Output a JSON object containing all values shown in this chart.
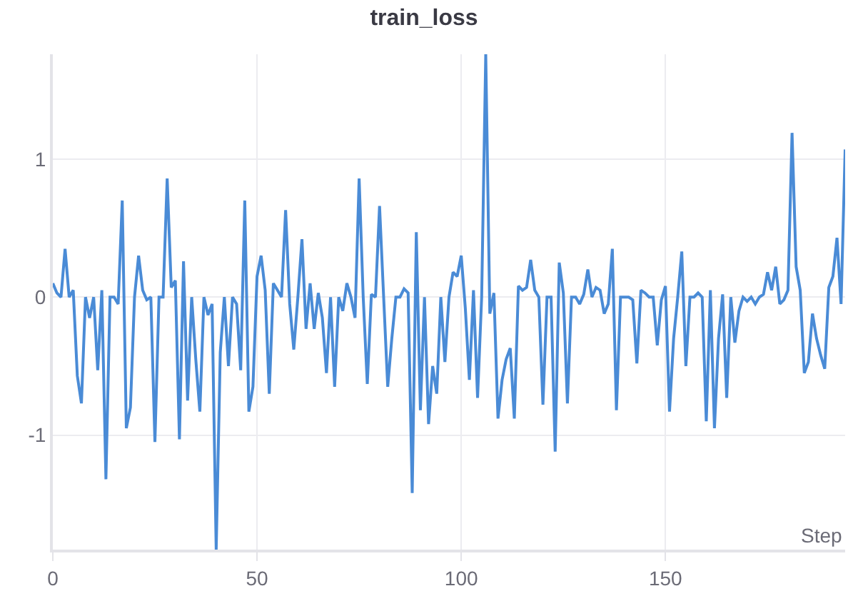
{
  "chart_data": {
    "type": "line",
    "title": "train_loss",
    "xlabel": "Step",
    "x": [
      0,
      1,
      2,
      3,
      4,
      5,
      6,
      7,
      8,
      9,
      10,
      11,
      12,
      13,
      14,
      15,
      16,
      17,
      18,
      19,
      20,
      21,
      22,
      23,
      24,
      25,
      26,
      27,
      28,
      29,
      30,
      31,
      32,
      33,
      34,
      35,
      36,
      37,
      38,
      39,
      40,
      41,
      42,
      43,
      44,
      45,
      46,
      47,
      48,
      49,
      50,
      51,
      52,
      53,
      54,
      55,
      56,
      57,
      58,
      59,
      60,
      61,
      62,
      63,
      64,
      65,
      66,
      67,
      68,
      69,
      70,
      71,
      72,
      73,
      74,
      75,
      76,
      77,
      78,
      79,
      80,
      81,
      82,
      83,
      84,
      85,
      86,
      87,
      88,
      89,
      90,
      91,
      92,
      93,
      94,
      95,
      96,
      97,
      98,
      99,
      100,
      101,
      102,
      103,
      104,
      105,
      106,
      107,
      108,
      109,
      110,
      111,
      112,
      113,
      114,
      115,
      116,
      117,
      118,
      119,
      120,
      121,
      122,
      123,
      124,
      125,
      126,
      127,
      128,
      129,
      130,
      131,
      132,
      133,
      134,
      135,
      136,
      137,
      138,
      139,
      140,
      141,
      142,
      143,
      144,
      145,
      146,
      147,
      148,
      149,
      150,
      151,
      152,
      153,
      154,
      155,
      156,
      157,
      158,
      159,
      160,
      161,
      162,
      163,
      164,
      165,
      166,
      167,
      168,
      169,
      170,
      171,
      172,
      173,
      174,
      175,
      176,
      177,
      178,
      179,
      180,
      181,
      182,
      183,
      184,
      185,
      186,
      187,
      188,
      189,
      190,
      191,
      192,
      193,
      194
    ],
    "series": [
      {
        "color": "#4a8bd6",
        "values": [
          0.1,
          0.03,
          0,
          0.35,
          0,
          0.05,
          -0.57,
          -0.77,
          0,
          -0.15,
          0,
          -0.53,
          0.05,
          -1.32,
          0,
          0,
          -0.05,
          0.7,
          -0.95,
          -0.8,
          0,
          0.3,
          0.05,
          -0.02,
          0,
          -1.05,
          0,
          0,
          0.86,
          0.07,
          0.12,
          -1.03,
          0.26,
          -0.75,
          0,
          -0.45,
          -0.83,
          0,
          -0.13,
          -0.05,
          -1.83,
          -0.4,
          0,
          -0.5,
          0,
          -0.05,
          -0.53,
          0.7,
          -0.83,
          -0.65,
          0.15,
          0.3,
          0.05,
          -0.7,
          0.1,
          0.05,
          0,
          0.63,
          -0.05,
          -0.38,
          0,
          0.42,
          -0.23,
          0.1,
          -0.23,
          0.03,
          -0.15,
          -0.55,
          0,
          -0.65,
          0,
          -0.1,
          0.1,
          0,
          -0.15,
          0.86,
          0,
          -0.63,
          0.02,
          0,
          0.66,
          0,
          -0.65,
          -0.3,
          0,
          0,
          0.06,
          0.03,
          -1.42,
          0.47,
          -0.82,
          0,
          -0.92,
          -0.5,
          -0.7,
          0,
          -0.47,
          0,
          0.18,
          0.15,
          0.3,
          -0.08,
          -0.6,
          0.05,
          -0.73,
          0,
          1.76,
          -0.12,
          0.03,
          -0.88,
          -0.6,
          -0.45,
          -0.37,
          -0.88,
          0.08,
          0.05,
          0.07,
          0.27,
          0.05,
          0,
          -0.78,
          0,
          0,
          -1.12,
          0.25,
          0.03,
          -0.77,
          0,
          0,
          -0.05,
          0.02,
          0.2,
          0,
          0.07,
          0.05,
          -0.12,
          -0.05,
          0.35,
          -0.82,
          0,
          0,
          0,
          -0.02,
          -0.48,
          0.05,
          0.03,
          0,
          0,
          -0.35,
          -0.02,
          0.08,
          -0.83,
          -0.3,
          0,
          0.33,
          -0.5,
          0,
          0,
          0.03,
          0,
          -0.9,
          0.05,
          -0.95,
          -0.3,
          0.02,
          -0.73,
          0,
          -0.33,
          -0.1,
          0,
          -0.03,
          0,
          -0.05,
          0,
          0.02,
          0.18,
          0.05,
          0.22,
          -0.05,
          -0.02,
          0.05,
          1.19,
          0.22,
          0.05,
          -0.55,
          -0.47,
          -0.12,
          -0.3,
          -0.42,
          -0.52,
          0.07,
          0.15,
          0.43,
          -0.05,
          1.07
        ]
      }
    ],
    "xlim": [
      0,
      194
    ],
    "ylim": [
      -1.83,
      1.76
    ],
    "xticks": [
      0,
      50,
      100,
      150
    ],
    "yticks": [
      -1,
      0,
      1
    ],
    "grid": true,
    "legend": false
  }
}
